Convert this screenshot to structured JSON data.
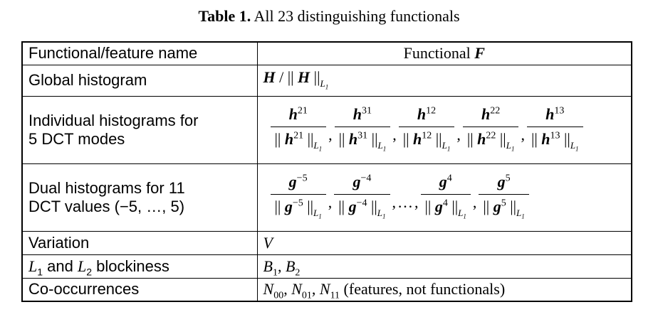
{
  "caption": {
    "label": "Table 1.",
    "text": " All 23 distinguishing functionals"
  },
  "header": {
    "col1": "Functional/feature name",
    "col2_prefix": "Functional ",
    "col2_symbol": "F"
  },
  "rows": [
    {
      "name": "Global histogram"
    },
    {
      "name_line1": "Individual histograms for",
      "name_line2": "5 DCT modes"
    },
    {
      "name_line1": "Dual histograms for 11",
      "name_line2": "DCT values (−5, …, 5)"
    },
    {
      "name": "Variation",
      "value": "V"
    },
    {
      "name_suffix": " blockiness",
      "value_sep": ", "
    },
    {
      "name": "Co-occurrences",
      "value_suffix": " (features, not functionals)"
    }
  ],
  "global_formula": {
    "H": "H",
    "div": " / || ",
    "norm_close": " ||",
    "L": "L",
    "L_sub": "1"
  },
  "individual_modes": [
    "21",
    "31",
    "12",
    "22",
    "13"
  ],
  "dual_values": [
    "−5",
    "−4",
    "4",
    "5"
  ],
  "ellipsis": "…",
  "norm_bars": "||",
  "blockiness": {
    "L1": "L",
    "L1_sub": "1",
    "and": " and ",
    "L2": "L",
    "L2_sub": "2",
    "B1": "B",
    "B1_sub": "1",
    "B2": "B",
    "B2_sub": "2"
  },
  "cooccurrence": {
    "N": "N",
    "subs": [
      "00",
      "01",
      "11"
    ]
  }
}
